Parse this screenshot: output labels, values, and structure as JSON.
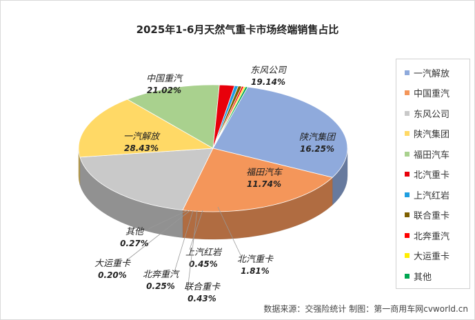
{
  "chart_data": {
    "type": "pie",
    "title": "2025年1-6月天然气重卡市场终端销售占比",
    "slices": [
      {
        "name": "一汽解放",
        "value": 28.43,
        "label": "28.43%",
        "color": "#8faadc"
      },
      {
        "name": "中国重汽",
        "value": 21.02,
        "label": "21.02%",
        "color": "#f4965a"
      },
      {
        "name": "东风公司",
        "value": 19.14,
        "label": "19.14%",
        "color": "#c9c9c9"
      },
      {
        "name": "陕汽集团",
        "value": 16.25,
        "label": "16.25%",
        "color": "#ffd966"
      },
      {
        "name": "福田汽车",
        "value": 11.74,
        "label": "11.74%",
        "color": "#a9d18e"
      },
      {
        "name": "北汽重卡",
        "value": 1.81,
        "label": "1.81%",
        "color": "#e8000b"
      },
      {
        "name": "上汽红岩",
        "value": 0.45,
        "label": "0.45%",
        "color": "#1f9ee0"
      },
      {
        "name": "联合重卡",
        "value": 0.43,
        "label": "0.43%",
        "color": "#7f6000"
      },
      {
        "name": "北奔重汽",
        "value": 0.25,
        "label": "0.25%",
        "color": "#ff0000"
      },
      {
        "name": "大运重卡",
        "value": 0.2,
        "label": "0.20%",
        "color": "#ffee00"
      },
      {
        "name": "其他",
        "value": 0.27,
        "label": "0.27%",
        "color": "#00a651"
      }
    ],
    "legend_position": "right"
  },
  "source_text": "数据来源：交强险统计  制图：第一商用车网cvworld.cn"
}
